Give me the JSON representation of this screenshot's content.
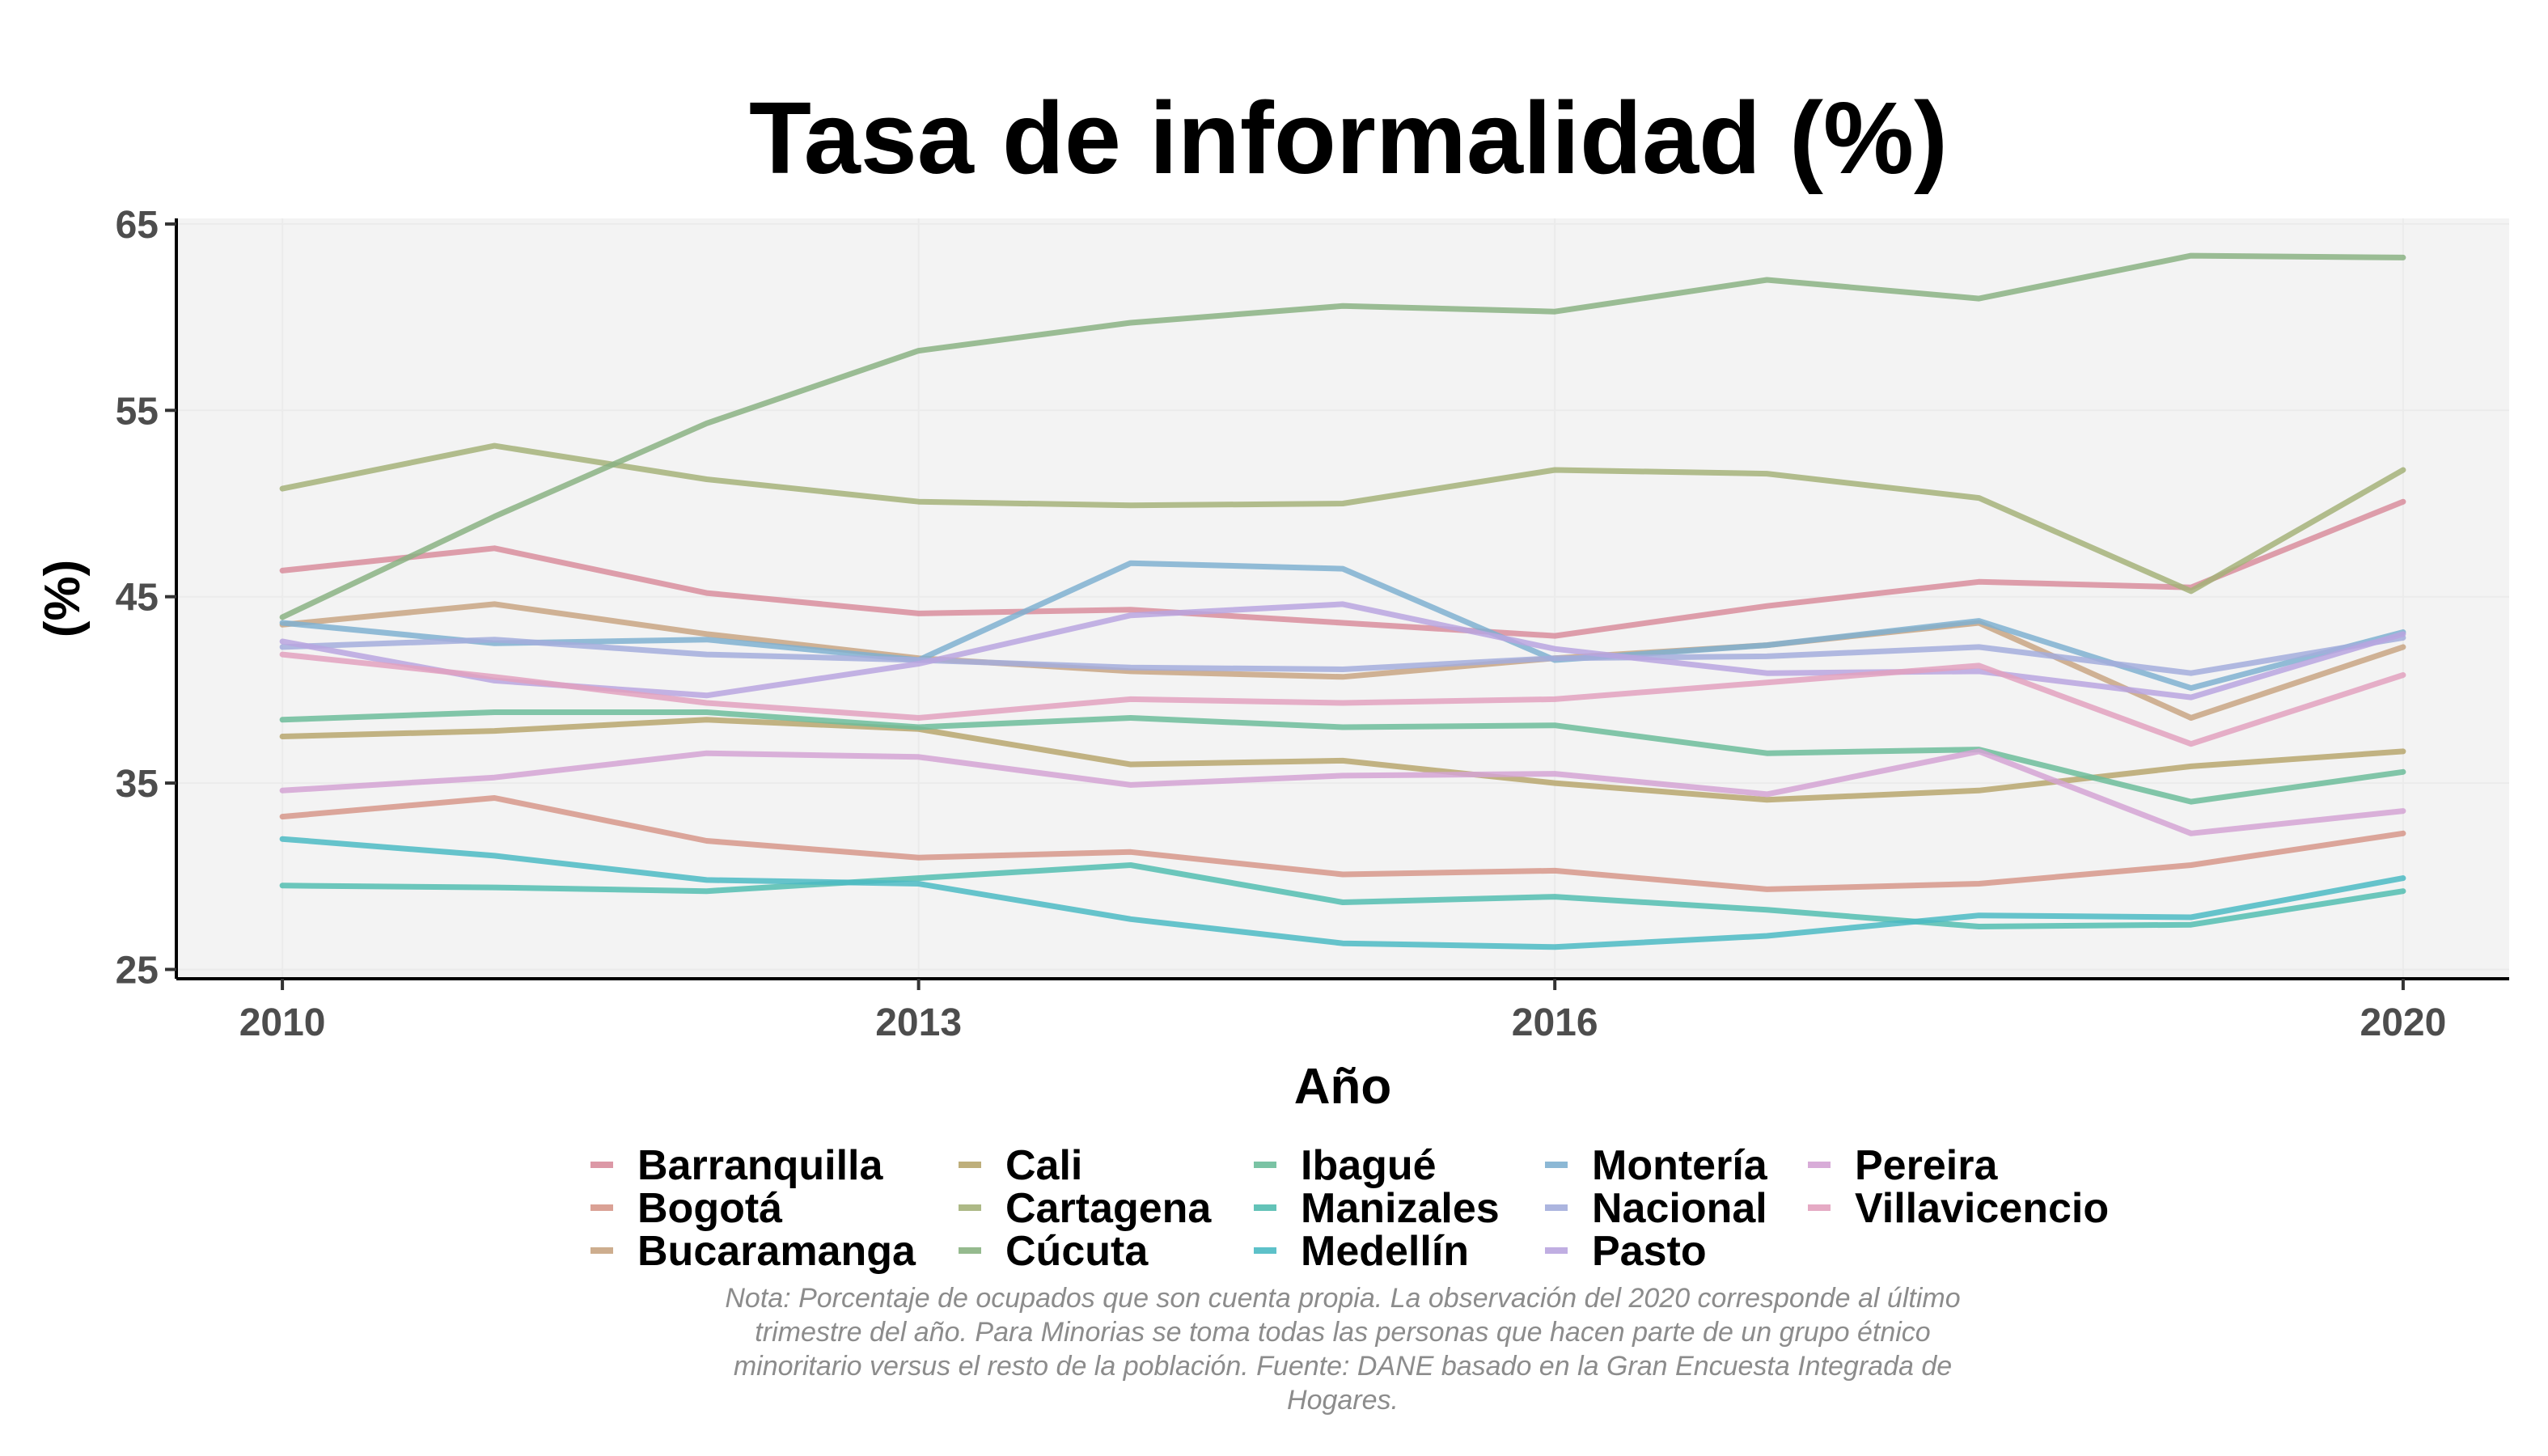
{
  "chart_data": {
    "type": "line",
    "title": "Tasa de informalidad (%)",
    "xlabel": "Año",
    "ylabel": "(%)",
    "xlim": [
      2009.5,
      2020.5
    ],
    "ylim": [
      24.5,
      65.3
    ],
    "xticks": [
      2010,
      2013,
      2016,
      2020
    ],
    "yticks": [
      25,
      35,
      45,
      55,
      65
    ],
    "grid": true,
    "legend_position": "bottom",
    "x": [
      2010,
      2011,
      2012,
      2013,
      2014,
      2015,
      2016,
      2017,
      2018,
      2019,
      2020
    ],
    "series": [
      {
        "name": "Barranquilla",
        "color": "#d88d9c",
        "values": [
          46.4,
          47.6,
          45.2,
          44.1,
          44.3,
          43.6,
          42.9,
          44.5,
          45.8,
          45.5,
          50.1
        ]
      },
      {
        "name": "Bogotá",
        "color": "#d6978a",
        "values": [
          33.2,
          34.2,
          31.9,
          31.0,
          31.3,
          30.1,
          30.3,
          29.3,
          29.6,
          30.6,
          32.3
        ]
      },
      {
        "name": "Bucaramanga",
        "color": "#c8a482",
        "values": [
          43.5,
          44.6,
          43.0,
          41.7,
          41.0,
          40.7,
          41.7,
          42.4,
          43.6,
          38.5,
          42.3
        ]
      },
      {
        "name": "Cali",
        "color": "#b7a66d",
        "values": [
          37.5,
          37.8,
          38.4,
          37.9,
          36.0,
          36.2,
          35.0,
          34.1,
          34.6,
          35.9,
          36.7
        ]
      },
      {
        "name": "Cartagena",
        "color": "#a4b179",
        "values": [
          50.8,
          53.1,
          51.3,
          50.1,
          49.9,
          50.0,
          51.8,
          51.6,
          50.3,
          45.3,
          51.8
        ]
      },
      {
        "name": "Cúcuta",
        "color": "#89b282",
        "values": [
          43.9,
          49.3,
          54.3,
          58.2,
          59.7,
          60.6,
          60.3,
          62.0,
          61.0,
          63.3,
          63.2
        ]
      },
      {
        "name": "Ibagué",
        "color": "#6cbc9a",
        "values": [
          38.4,
          38.8,
          38.8,
          38.0,
          38.5,
          38.0,
          38.1,
          36.6,
          36.8,
          34.0,
          35.6
        ]
      },
      {
        "name": "Manizales",
        "color": "#52bdb0",
        "values": [
          29.5,
          29.4,
          29.2,
          29.9,
          30.6,
          28.6,
          28.9,
          28.2,
          27.3,
          27.4,
          29.2
        ]
      },
      {
        "name": "Medellín",
        "color": "#4bbac3",
        "values": [
          32.0,
          31.1,
          29.8,
          29.6,
          27.7,
          26.4,
          26.2,
          26.8,
          27.9,
          27.8,
          29.9
        ]
      },
      {
        "name": "Montería",
        "color": "#7fb0d0",
        "values": [
          43.6,
          42.5,
          42.7,
          41.6,
          46.8,
          46.5,
          41.6,
          42.4,
          43.7,
          40.1,
          43.1
        ]
      },
      {
        "name": "Nacional",
        "color": "#a3addc",
        "values": [
          42.3,
          42.7,
          41.9,
          41.6,
          41.2,
          41.1,
          41.7,
          41.8,
          42.3,
          40.9,
          42.8
        ]
      },
      {
        "name": "Pasto",
        "color": "#b9a5df",
        "values": [
          42.6,
          40.5,
          39.7,
          41.4,
          44.0,
          44.6,
          42.2,
          40.9,
          41.0,
          39.6,
          43.0
        ]
      },
      {
        "name": "Pereira",
        "color": "#d4a3d4",
        "values": [
          34.6,
          35.3,
          36.6,
          36.4,
          34.9,
          35.4,
          35.5,
          34.4,
          36.7,
          32.3,
          33.5
        ]
      },
      {
        "name": "Villavicencio",
        "color": "#e2a1be",
        "values": [
          41.9,
          40.7,
          39.3,
          38.5,
          39.5,
          39.3,
          39.5,
          40.4,
          41.3,
          37.1,
          40.8
        ]
      }
    ],
    "note": [
      "Nota: Porcentaje de ocupados que son cuenta propia. La observación del 2020 corresponde al último",
      "trimestre del año. Para Minorias se toma todas las personas que hacen parte de un grupo étnico",
      "minoritario versus el resto de la población. Fuente: DANE basado en la Gran Encuesta Integrada de",
      "Hogares."
    ]
  }
}
